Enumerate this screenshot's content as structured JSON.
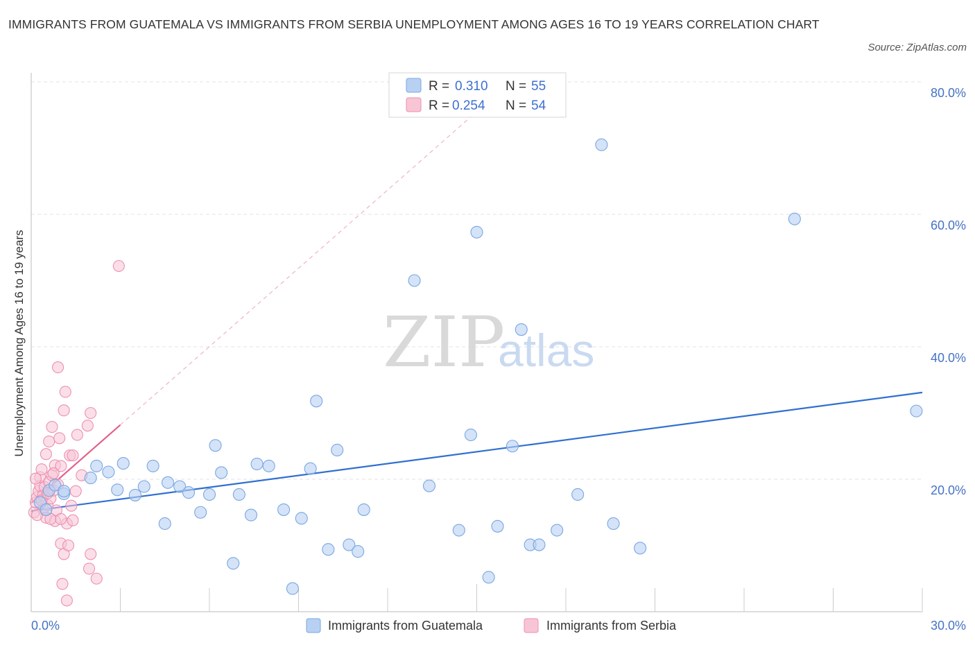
{
  "header": {
    "title": "IMMIGRANTS FROM GUATEMALA VS IMMIGRANTS FROM SERBIA UNEMPLOYMENT AMONG AGES 16 TO 19 YEARS CORRELATION CHART",
    "source": "Source: ZipAtlas.com"
  },
  "watermark": {
    "zip": "ZIP",
    "atlas": "atlas"
  },
  "legend": {
    "rows": [
      {
        "r_label": "R =",
        "r_value": "0.310",
        "n_label": "N =",
        "n_value": "55"
      },
      {
        "r_label": "R =",
        "r_value": "0.254",
        "n_label": "N =",
        "n_value": "54"
      }
    ]
  },
  "colors": {
    "guatemala_fill": "#b8d1f3",
    "guatemala_stroke": "#7aa6e0",
    "guatemala_line": "#2f6fd0",
    "serbia_fill": "#f8c5d5",
    "serbia_stroke": "#ec8fb0",
    "serbia_line": "#e3608a",
    "grid": "#e3e3e3",
    "axis_text": "#4472c4"
  },
  "chart_data": {
    "type": "scatter",
    "title": "IMMIGRANTS FROM GUATEMALA VS IMMIGRANTS FROM SERBIA UNEMPLOYMENT AMONG AGES 16 TO 19 YEARS CORRELATION CHART",
    "xlabel": "",
    "ylabel": "Unemployment Among Ages 16 to 19 years",
    "xlim": [
      0,
      30
    ],
    "ylim": [
      0,
      80
    ],
    "x_tick_labels": [
      "0.0%",
      "30.0%"
    ],
    "y_ticks": [
      20,
      40,
      60,
      80
    ],
    "y_tick_labels": [
      "20.0%",
      "40.0%",
      "60.0%",
      "80.0%"
    ],
    "legend_position": "top-center",
    "series": [
      {
        "name": "Immigrants from Guatemala",
        "R": 0.31,
        "N": 55,
        "trend": {
          "x": [
            0,
            30
          ],
          "y": [
            15.2,
            33.1
          ]
        },
        "points": [
          [
            0.6,
            18.3
          ],
          [
            0.8,
            19.1
          ],
          [
            1.1,
            17.8
          ],
          [
            2.0,
            20.2
          ],
          [
            2.2,
            22.0
          ],
          [
            2.6,
            21.1
          ],
          [
            2.9,
            18.4
          ],
          [
            3.1,
            22.4
          ],
          [
            3.5,
            17.6
          ],
          [
            3.8,
            18.9
          ],
          [
            4.1,
            22.0
          ],
          [
            4.5,
            13.3
          ],
          [
            4.6,
            19.5
          ],
          [
            5.0,
            18.9
          ],
          [
            5.3,
            18.0
          ],
          [
            5.7,
            15.0
          ],
          [
            6.0,
            17.7
          ],
          [
            6.2,
            25.1
          ],
          [
            6.4,
            21.0
          ],
          [
            6.8,
            7.3
          ],
          [
            7.0,
            17.7
          ],
          [
            7.4,
            14.6
          ],
          [
            7.6,
            22.3
          ],
          [
            8.0,
            22.0
          ],
          [
            8.5,
            15.4
          ],
          [
            8.8,
            3.5
          ],
          [
            9.1,
            14.1
          ],
          [
            9.4,
            21.6
          ],
          [
            9.6,
            31.8
          ],
          [
            10.0,
            9.4
          ],
          [
            10.3,
            24.4
          ],
          [
            10.7,
            10.1
          ],
          [
            11.0,
            9.1
          ],
          [
            11.2,
            15.4
          ],
          [
            12.9,
            50.0
          ],
          [
            13.4,
            19.0
          ],
          [
            14.4,
            12.3
          ],
          [
            14.8,
            26.7
          ],
          [
            15.0,
            57.3
          ],
          [
            15.4,
            5.2
          ],
          [
            15.7,
            12.9
          ],
          [
            16.2,
            25.0
          ],
          [
            16.5,
            42.6
          ],
          [
            16.8,
            10.1
          ],
          [
            17.1,
            10.1
          ],
          [
            17.7,
            12.3
          ],
          [
            18.4,
            17.7
          ],
          [
            19.2,
            70.5
          ],
          [
            19.6,
            13.3
          ],
          [
            20.5,
            9.6
          ],
          [
            25.7,
            59.3
          ],
          [
            29.8,
            30.3
          ],
          [
            0.3,
            16.5
          ],
          [
            0.5,
            15.4
          ],
          [
            1.1,
            18.2
          ]
        ]
      },
      {
        "name": "Immigrants from Serbia",
        "R": 0.254,
        "N": 54,
        "trend": {
          "x": [
            0,
            3.0
          ],
          "y": [
            16.4,
            28.2
          ]
        },
        "trend_extension": {
          "x": [
            3.0,
            15.0
          ],
          "y": [
            28.2,
            75.5
          ]
        },
        "points": [
          [
            0.1,
            15.0
          ],
          [
            0.15,
            16.5
          ],
          [
            0.2,
            17.3
          ],
          [
            0.25,
            18.2
          ],
          [
            0.3,
            19.0
          ],
          [
            0.3,
            20.3
          ],
          [
            0.35,
            21.5
          ],
          [
            0.4,
            15.5
          ],
          [
            0.4,
            17.6
          ],
          [
            0.45,
            18.8
          ],
          [
            0.5,
            14.2
          ],
          [
            0.5,
            23.8
          ],
          [
            0.55,
            16.1
          ],
          [
            0.6,
            19.6
          ],
          [
            0.6,
            25.7
          ],
          [
            0.65,
            17.1
          ],
          [
            0.7,
            27.9
          ],
          [
            0.7,
            20.6
          ],
          [
            0.75,
            18.3
          ],
          [
            0.8,
            13.7
          ],
          [
            0.8,
            22.1
          ],
          [
            0.85,
            15.3
          ],
          [
            0.9,
            36.9
          ],
          [
            0.9,
            19.2
          ],
          [
            0.95,
            26.2
          ],
          [
            1.0,
            22.0
          ],
          [
            1.0,
            10.3
          ],
          [
            1.05,
            4.2
          ],
          [
            1.1,
            30.4
          ],
          [
            1.1,
            8.7
          ],
          [
            1.15,
            33.2
          ],
          [
            1.2,
            13.3
          ],
          [
            1.2,
            1.7
          ],
          [
            1.25,
            10.0
          ],
          [
            1.3,
            23.6
          ],
          [
            1.35,
            16.0
          ],
          [
            1.4,
            23.6
          ],
          [
            1.5,
            18.2
          ],
          [
            1.55,
            26.7
          ],
          [
            1.4,
            13.8
          ],
          [
            1.7,
            20.6
          ],
          [
            1.9,
            28.1
          ],
          [
            1.95,
            6.5
          ],
          [
            2.0,
            30.0
          ],
          [
            2.0,
            8.7
          ],
          [
            2.2,
            5.0
          ],
          [
            2.95,
            52.2
          ],
          [
            0.2,
            14.6
          ],
          [
            0.35,
            16.8
          ],
          [
            0.55,
            17.9
          ],
          [
            0.65,
            14.0
          ],
          [
            0.75,
            20.9
          ],
          [
            1.0,
            14.0
          ],
          [
            0.15,
            20.1
          ]
        ]
      }
    ]
  },
  "bottom_legend": {
    "items": [
      "Immigrants from Guatemala",
      "Immigrants from Serbia"
    ]
  }
}
